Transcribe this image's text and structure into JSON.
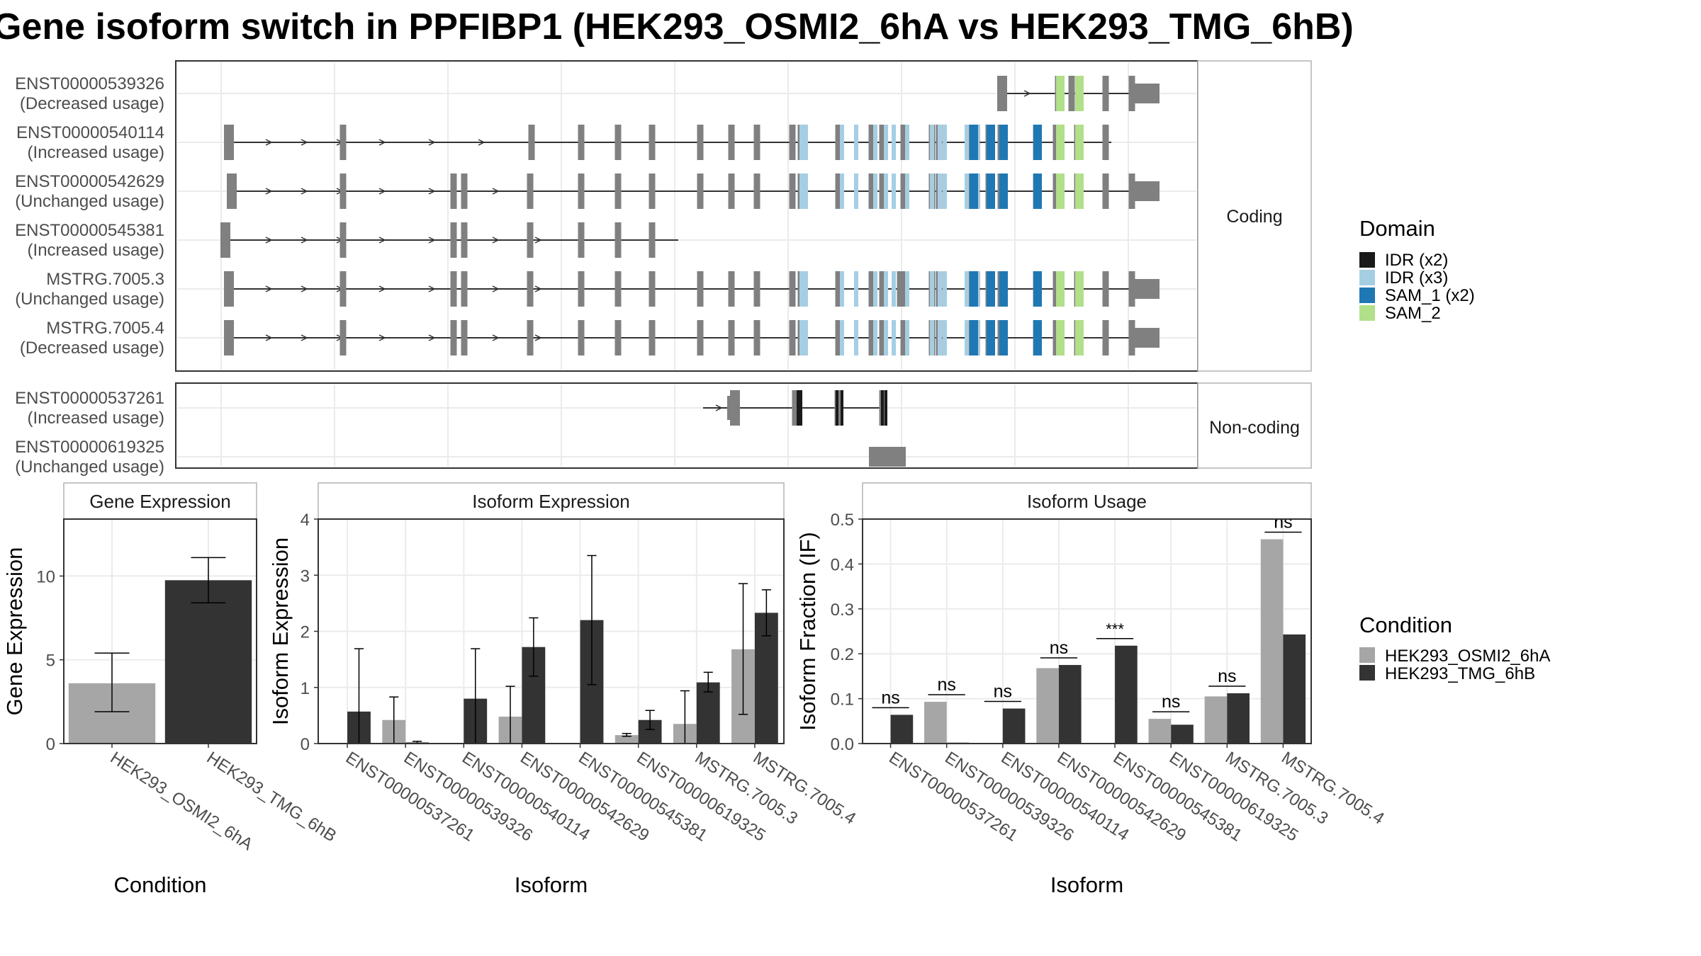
{
  "title": "Gene isoform switch in PPFIBP1 (HEK293_OSMI2_6hA vs HEK293_TMG_6hB)",
  "structure_panel": {
    "coding_strip": "Coding",
    "noncoding_strip": "Non-coding",
    "coding_isoforms": [
      {
        "id": "ENST00000539326",
        "usage": "(Decreased usage)"
      },
      {
        "id": "ENST00000540114",
        "usage": "(Increased usage)"
      },
      {
        "id": "ENST00000542629",
        "usage": "(Unchanged usage)"
      },
      {
        "id": "ENST00000545381",
        "usage": "(Increased usage)"
      },
      {
        "id": "MSTRG.7005.3",
        "usage": "(Unchanged usage)"
      },
      {
        "id": "MSTRG.7005.4",
        "usage": "(Decreased usage)"
      }
    ],
    "noncoding_isoforms": [
      {
        "id": "ENST00000537261",
        "usage": "(Increased usage)"
      },
      {
        "id": "ENST00000619325",
        "usage": "(Unchanged usage)"
      }
    ]
  },
  "domain_legend": {
    "title": "Domain",
    "items": [
      {
        "label": "IDR (x2)",
        "color": "#1a1a1a"
      },
      {
        "label": "IDR (x3)",
        "color": "#a6cee3"
      },
      {
        "label": "SAM_1 (x2)",
        "color": "#1f78b4"
      },
      {
        "label": "SAM_2",
        "color": "#b2df8a"
      }
    ]
  },
  "condition_legend": {
    "title": "Condition",
    "items": [
      {
        "label": "HEK293_OSMI2_6hA",
        "color": "#a6a6a6"
      },
      {
        "label": "HEK293_TMG_6hB",
        "color": "#333333"
      }
    ]
  },
  "chart_data": [
    {
      "type": "bar",
      "title": "Gene Expression",
      "xlabel": "Condition",
      "ylabel": "Gene Expression",
      "ylim": [
        0,
        13.4
      ],
      "yticks": [
        0,
        5,
        10
      ],
      "categories": [
        "HEK293_OSMI2_6hA",
        "HEK293_TMG_6hB"
      ],
      "values": [
        3.6,
        9.75
      ],
      "error_low": [
        1.9,
        8.4
      ],
      "error_high": [
        5.4,
        11.1
      ],
      "colors": [
        "#a6a6a6",
        "#333333"
      ]
    },
    {
      "type": "bar",
      "title": "Isoform Expression",
      "xlabel": "Isoform",
      "ylabel": "Isoform Expression",
      "ylim": [
        0,
        4.0
      ],
      "yticks": [
        0,
        1,
        2,
        3,
        4
      ],
      "categories": [
        "ENST00000537261",
        "ENST00000539326",
        "ENST00000540114",
        "ENST00000542629",
        "ENST00000545381",
        "ENST00000619325",
        "MSTRG.7005.3",
        "MSTRG.7005.4"
      ],
      "series": [
        {
          "name": "HEK293_OSMI2_6hA",
          "color": "#a6a6a6",
          "values": [
            0.0,
            0.42,
            0.0,
            0.48,
            0.0,
            0.15,
            0.35,
            1.68
          ],
          "error_low": [
            0.0,
            0.0,
            0.0,
            0.0,
            0.0,
            0.13,
            0.0,
            0.52
          ],
          "error_high": [
            0.0,
            0.83,
            0.0,
            1.02,
            0.0,
            0.18,
            0.94,
            2.85
          ]
        },
        {
          "name": "HEK293_TMG_6hB",
          "color": "#333333",
          "values": [
            0.57,
            0.02,
            0.8,
            1.72,
            2.2,
            0.42,
            1.09,
            2.33
          ],
          "error_low": [
            0.0,
            0.0,
            0.0,
            1.2,
            1.05,
            0.25,
            0.92,
            1.92
          ],
          "error_high": [
            1.69,
            0.04,
            1.69,
            2.24,
            3.35,
            0.59,
            1.27,
            2.74
          ]
        }
      ]
    },
    {
      "type": "bar",
      "title": "Isoform Usage",
      "xlabel": "Isoform",
      "ylabel": "Isoform Fraction (IF)",
      "ylim": [
        0,
        0.5
      ],
      "yticks": [
        "0.0",
        "0.1",
        "0.2",
        "0.3",
        "0.4",
        "0.5"
      ],
      "categories": [
        "ENST00000537261",
        "ENST00000539326",
        "ENST00000540114",
        "ENST00000542629",
        "ENST00000545381",
        "ENST00000619325",
        "MSTRG.7005.3",
        "MSTRG.7005.4"
      ],
      "series": [
        {
          "name": "HEK293_OSMI2_6hA",
          "color": "#a6a6a6",
          "values": [
            0.0,
            0.093,
            0.0,
            0.168,
            0.0,
            0.055,
            0.105,
            0.455
          ]
        },
        {
          "name": "HEK293_TMG_6hB",
          "color": "#333333",
          "values": [
            0.064,
            0.002,
            0.078,
            0.175,
            0.218,
            0.042,
            0.112,
            0.243
          ]
        }
      ],
      "significance": [
        "ns",
        "ns",
        "ns",
        "ns",
        "***",
        "ns",
        "ns",
        "ns"
      ]
    }
  ]
}
